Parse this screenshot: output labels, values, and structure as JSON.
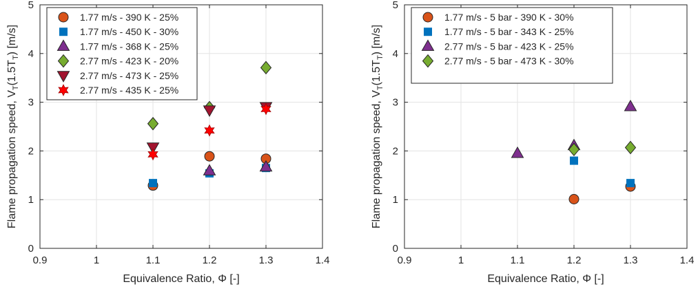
{
  "chart_data": [
    {
      "type": "scatter",
      "xlabel": "Equivalence Ratio, Φ [-]",
      "ylabel_main": "Flame propagation speed, V",
      "ylabel_sub1": "T",
      "ylabel_mid": "(1.5T",
      "ylabel_sub2": "T",
      "ylabel_end": ") [m/s]",
      "xlim": [
        0.9,
        1.4
      ],
      "ylim": [
        0,
        5
      ],
      "xticks": [
        "0.9",
        "1",
        "1.1",
        "1.2",
        "1.3",
        "1.4"
      ],
      "yticks": [
        "0",
        "1",
        "2",
        "3",
        "4",
        "5"
      ],
      "grid": true,
      "legend_position": "top-left",
      "series": [
        {
          "name": "1.77 m/s - 390 K - 25%",
          "marker": "circle",
          "color": "#D95319",
          "x": [
            1.1,
            1.2,
            1.3
          ],
          "y": [
            1.29,
            1.89,
            1.84
          ]
        },
        {
          "name": "1.77 m/s - 450 K - 30%",
          "marker": "square",
          "color": "#0072BD",
          "x": [
            1.1,
            1.2,
            1.3
          ],
          "y": [
            1.34,
            1.54,
            1.65
          ]
        },
        {
          "name": "1.77 m/s - 368 K - 25%",
          "marker": "triangle-up",
          "color": "#7E2F8E",
          "x": [
            1.2,
            1.3
          ],
          "y": [
            1.59,
            1.67
          ]
        },
        {
          "name": "2.77 m/s - 423 K - 20%",
          "marker": "diamond",
          "color": "#77AC30",
          "x": [
            1.1,
            1.2,
            1.3
          ],
          "y": [
            2.56,
            2.89,
            3.71
          ]
        },
        {
          "name": "2.77 m/s - 473 K - 25%",
          "marker": "triangle-down",
          "color": "#A2142F",
          "x": [
            1.1,
            1.2,
            1.3
          ],
          "y": [
            2.08,
            2.84,
            2.91
          ]
        },
        {
          "name": "2.77 m/s - 435 K - 25%",
          "marker": "hexagram",
          "color": "#FF0000",
          "x": [
            1.1,
            1.2,
            1.3
          ],
          "y": [
            1.93,
            2.42,
            2.86
          ]
        }
      ]
    },
    {
      "type": "scatter",
      "xlabel": "Equivalence Ratio, Φ [-]",
      "ylabel_main": "Flame propagation speed, V",
      "ylabel_sub1": "T",
      "ylabel_mid": "(1.5T",
      "ylabel_sub2": "T",
      "ylabel_end": ") [m/s]",
      "xlim": [
        0.9,
        1.4
      ],
      "ylim": [
        0,
        5
      ],
      "xticks": [
        "0.9",
        "1",
        "1.1",
        "1.2",
        "1.3",
        "1.4"
      ],
      "yticks": [
        "0",
        "1",
        "2",
        "3",
        "4",
        "5"
      ],
      "grid": true,
      "legend_position": "top-left",
      "series": [
        {
          "name": "1.77 m/s - 5 bar - 390 K - 30%",
          "marker": "circle",
          "color": "#D95319",
          "x": [
            1.2,
            1.3
          ],
          "y": [
            1.01,
            1.27
          ]
        },
        {
          "name": "1.77 m/s - 5 bar - 343 K - 25%",
          "marker": "square",
          "color": "#0072BD",
          "x": [
            1.2,
            1.3
          ],
          "y": [
            1.8,
            1.34
          ]
        },
        {
          "name": "2.77 m/s - 5 bar - 423 K - 25%",
          "marker": "triangle-up",
          "color": "#7E2F8E",
          "x": [
            1.1,
            1.2,
            1.3
          ],
          "y": [
            1.95,
            2.11,
            2.91
          ]
        },
        {
          "name": "2.77 m/s - 5 bar - 473 K - 30%",
          "marker": "diamond",
          "color": "#77AC30",
          "x": [
            1.2,
            1.3
          ],
          "y": [
            2.03,
            2.07
          ]
        }
      ]
    }
  ]
}
